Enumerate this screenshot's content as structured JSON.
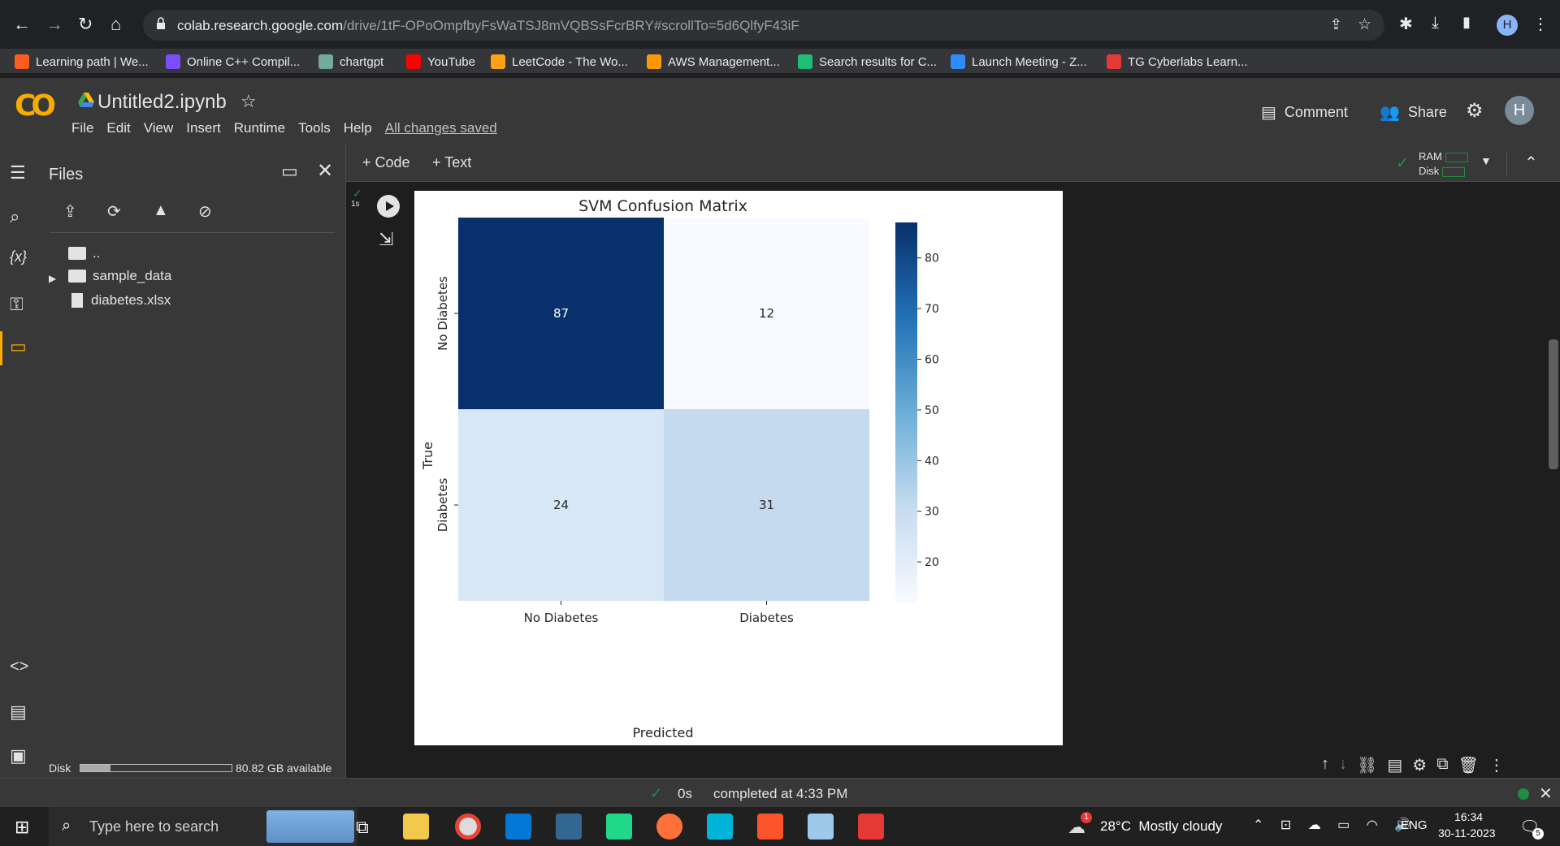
{
  "browser": {
    "url_host": "colab.research.google.com",
    "url_path": "/drive/1tF-OPoOmpfbyFsWaTSJ8mVQBSsFcrBRY#scrollTo=5d6QlfyF43iF",
    "profile_initial": "H"
  },
  "bookmarks": [
    {
      "label": "Learning path | We...",
      "color": "#ff5a1f"
    },
    {
      "label": "Online C++ Compil...",
      "color": "#7c4dff"
    },
    {
      "label": "chartgpt",
      "color": "#74aa9c"
    },
    {
      "label": "YouTube",
      "color": "#ff0000"
    },
    {
      "label": "LeetCode - The Wo...",
      "color": "#ffa116"
    },
    {
      "label": "AWS Management...",
      "color": "#ff9900"
    },
    {
      "label": "Search results for C...",
      "color": "#1dbf73"
    },
    {
      "label": "Launch Meeting - Z...",
      "color": "#2d8cff"
    },
    {
      "label": "TG Cyberlabs Learn...",
      "color": "#e53935"
    }
  ],
  "colab": {
    "logo": "CO",
    "notebook_title": "Untitled2.ipynb",
    "menu": [
      "File",
      "Edit",
      "View",
      "Insert",
      "Runtime",
      "Tools",
      "Help"
    ],
    "saved_status": "All changes saved",
    "comment_label": "Comment",
    "share_label": "Share",
    "avatar_initial": "H"
  },
  "files_panel": {
    "title": "Files",
    "parent_dir": "..",
    "items": [
      {
        "name": "sample_data",
        "type": "folder"
      },
      {
        "name": "diabetes.xlsx",
        "type": "file"
      }
    ],
    "disk_label": "Disk",
    "disk_available": "80.82 GB available",
    "disk_used_fraction": 0.2
  },
  "toolbar": {
    "add_code": "+ Code",
    "add_text": "+ Text",
    "ram_label": "RAM",
    "disk_label": "Disk"
  },
  "cell": {
    "exec_time": "1s"
  },
  "chart_data": {
    "type": "heatmap",
    "title": "SVM Confusion Matrix",
    "xlabel": "Predicted",
    "ylabel": "True",
    "x_categories": [
      "No Diabetes",
      "Diabetes"
    ],
    "y_categories": [
      "No Diabetes",
      "Diabetes"
    ],
    "values": [
      [
        87,
        12
      ],
      [
        24,
        31
      ]
    ],
    "colormap": "Blues",
    "colorbar_ticks": [
      20,
      30,
      40,
      50,
      60,
      70,
      80
    ],
    "colorbar_range": [
      12,
      87
    ]
  },
  "status": {
    "elapsed": "0s",
    "message": "completed at 4:33 PM"
  },
  "taskbar": {
    "search_placeholder": "Type here to search",
    "weather": "28°C  Mostly cloudy",
    "weather_badge": "1",
    "language": "ENG",
    "time": "16:34",
    "date": "30-11-2023",
    "notification_count": "5"
  }
}
